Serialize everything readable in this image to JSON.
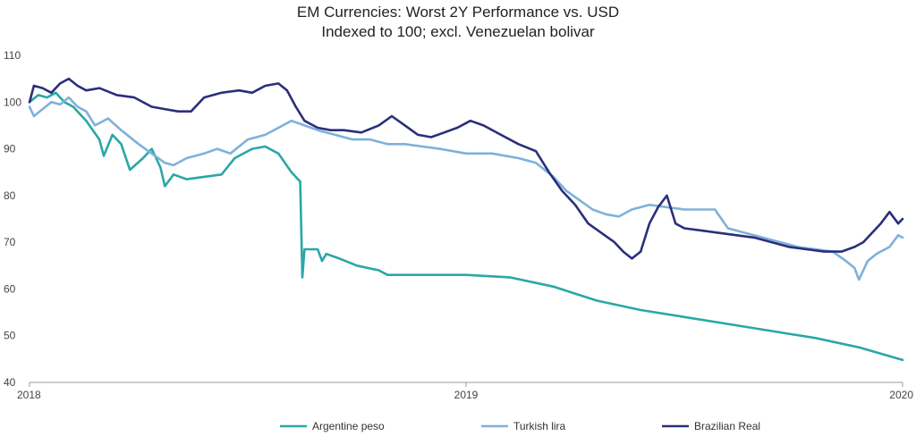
{
  "chart_data": {
    "type": "line",
    "title": "EM Currencies: Worst 2Y Performance vs. USD",
    "subtitle": "Indexed to 100; excl. Venezuelan bolivar",
    "xlabel": "",
    "ylabel": "",
    "x_ticks": [
      "2018",
      "2019",
      "2020"
    ],
    "y_ticks": [
      40,
      50,
      60,
      70,
      80,
      90,
      100,
      110
    ],
    "xlim": [
      2018.0,
      2020.0
    ],
    "ylim": [
      40,
      110
    ],
    "grid": false,
    "legend_position": "bottom",
    "series": [
      {
        "name": "Argentine peso",
        "color": "#2aa7a6",
        "points": [
          [
            2018.0,
            100
          ],
          [
            2018.02,
            101.5
          ],
          [
            2018.04,
            101
          ],
          [
            2018.06,
            102
          ],
          [
            2018.08,
            100
          ],
          [
            2018.1,
            99
          ],
          [
            2018.13,
            96
          ],
          [
            2018.16,
            92
          ],
          [
            2018.17,
            88.5
          ],
          [
            2018.19,
            93
          ],
          [
            2018.21,
            91
          ],
          [
            2018.23,
            85.5
          ],
          [
            2018.26,
            88
          ],
          [
            2018.28,
            90
          ],
          [
            2018.3,
            86
          ],
          [
            2018.31,
            82
          ],
          [
            2018.33,
            84.5
          ],
          [
            2018.36,
            83.5
          ],
          [
            2018.4,
            84
          ],
          [
            2018.44,
            84.5
          ],
          [
            2018.47,
            88
          ],
          [
            2018.51,
            90
          ],
          [
            2018.54,
            90.5
          ],
          [
            2018.57,
            89
          ],
          [
            2018.6,
            85
          ],
          [
            2018.62,
            83
          ],
          [
            2018.625,
            62.5
          ],
          [
            2018.63,
            68.5
          ],
          [
            2018.66,
            68.5
          ],
          [
            2018.67,
            66
          ],
          [
            2018.68,
            67.5
          ],
          [
            2018.71,
            66.5
          ],
          [
            2018.75,
            65
          ],
          [
            2018.8,
            64
          ],
          [
            2018.82,
            63
          ],
          [
            2018.9,
            63
          ],
          [
            2019.0,
            63
          ],
          [
            2019.1,
            62.5
          ],
          [
            2019.2,
            60.5
          ],
          [
            2019.3,
            57.5
          ],
          [
            2019.4,
            55.5
          ],
          [
            2019.5,
            54
          ],
          [
            2019.6,
            52.5
          ],
          [
            2019.7,
            51
          ],
          [
            2019.8,
            49.5
          ],
          [
            2019.9,
            47.5
          ],
          [
            2020.0,
            44.8
          ]
        ]
      },
      {
        "name": "Turkish lira",
        "color": "#7fb1da",
        "points": [
          [
            2018.0,
            99
          ],
          [
            2018.01,
            97
          ],
          [
            2018.03,
            98.5
          ],
          [
            2018.05,
            100
          ],
          [
            2018.07,
            99.5
          ],
          [
            2018.09,
            101
          ],
          [
            2018.11,
            99
          ],
          [
            2018.13,
            98
          ],
          [
            2018.15,
            95
          ],
          [
            2018.18,
            96.5
          ],
          [
            2018.21,
            94
          ],
          [
            2018.25,
            91
          ],
          [
            2018.28,
            89
          ],
          [
            2018.31,
            87
          ],
          [
            2018.33,
            86.5
          ],
          [
            2018.36,
            88
          ],
          [
            2018.4,
            89
          ],
          [
            2018.43,
            90
          ],
          [
            2018.46,
            89
          ],
          [
            2018.5,
            92
          ],
          [
            2018.54,
            93
          ],
          [
            2018.57,
            94.5
          ],
          [
            2018.6,
            96
          ],
          [
            2018.63,
            95
          ],
          [
            2018.66,
            94
          ],
          [
            2018.7,
            93
          ],
          [
            2018.74,
            92
          ],
          [
            2018.78,
            92
          ],
          [
            2018.82,
            91
          ],
          [
            2018.86,
            91
          ],
          [
            2018.9,
            90.5
          ],
          [
            2018.94,
            90
          ],
          [
            2019.0,
            89
          ],
          [
            2019.06,
            89
          ],
          [
            2019.12,
            88
          ],
          [
            2019.16,
            87
          ],
          [
            2019.2,
            84
          ],
          [
            2019.23,
            81
          ],
          [
            2019.26,
            79
          ],
          [
            2019.29,
            77
          ],
          [
            2019.32,
            76
          ],
          [
            2019.35,
            75.5
          ],
          [
            2019.38,
            77
          ],
          [
            2019.42,
            78
          ],
          [
            2019.46,
            77.5
          ],
          [
            2019.5,
            77
          ],
          [
            2019.54,
            77
          ],
          [
            2019.57,
            77
          ],
          [
            2019.6,
            73
          ],
          [
            2019.64,
            72
          ],
          [
            2019.68,
            71
          ],
          [
            2019.72,
            70
          ],
          [
            2019.76,
            69
          ],
          [
            2019.8,
            68.5
          ],
          [
            2019.84,
            68
          ],
          [
            2019.87,
            66
          ],
          [
            2019.89,
            64.5
          ],
          [
            2019.9,
            62
          ],
          [
            2019.92,
            66
          ],
          [
            2019.94,
            67.5
          ],
          [
            2019.97,
            69
          ],
          [
            2019.99,
            71.5
          ],
          [
            2020.0,
            71
          ]
        ]
      },
      {
        "name": "Brazilian Real",
        "color": "#2a2f7a",
        "points": [
          [
            2018.0,
            100
          ],
          [
            2018.01,
            103.5
          ],
          [
            2018.03,
            103
          ],
          [
            2018.05,
            102
          ],
          [
            2018.07,
            104
          ],
          [
            2018.09,
            105
          ],
          [
            2018.11,
            103.5
          ],
          [
            2018.13,
            102.5
          ],
          [
            2018.16,
            103
          ],
          [
            2018.2,
            101.5
          ],
          [
            2018.24,
            101
          ],
          [
            2018.28,
            99
          ],
          [
            2018.31,
            98.5
          ],
          [
            2018.34,
            98
          ],
          [
            2018.37,
            98
          ],
          [
            2018.4,
            101
          ],
          [
            2018.44,
            102
          ],
          [
            2018.48,
            102.5
          ],
          [
            2018.51,
            102
          ],
          [
            2018.54,
            103.5
          ],
          [
            2018.57,
            104
          ],
          [
            2018.59,
            102.5
          ],
          [
            2018.61,
            99
          ],
          [
            2018.63,
            96
          ],
          [
            2018.66,
            94.5
          ],
          [
            2018.69,
            94
          ],
          [
            2018.72,
            94
          ],
          [
            2018.76,
            93.5
          ],
          [
            2018.8,
            95
          ],
          [
            2018.83,
            97
          ],
          [
            2018.86,
            95
          ],
          [
            2018.89,
            93
          ],
          [
            2018.92,
            92.5
          ],
          [
            2018.95,
            93.5
          ],
          [
            2018.98,
            94.5
          ],
          [
            2019.01,
            96
          ],
          [
            2019.04,
            95
          ],
          [
            2019.08,
            93
          ],
          [
            2019.12,
            91
          ],
          [
            2019.16,
            89.5
          ],
          [
            2019.19,
            85
          ],
          [
            2019.22,
            81
          ],
          [
            2019.25,
            78
          ],
          [
            2019.28,
            74
          ],
          [
            2019.31,
            72
          ],
          [
            2019.34,
            70
          ],
          [
            2019.36,
            68
          ],
          [
            2019.38,
            66.5
          ],
          [
            2019.4,
            68
          ],
          [
            2019.42,
            74
          ],
          [
            2019.44,
            77.5
          ],
          [
            2019.46,
            80
          ],
          [
            2019.48,
            74
          ],
          [
            2019.5,
            73
          ],
          [
            2019.54,
            72.5
          ],
          [
            2019.58,
            72
          ],
          [
            2019.62,
            71.5
          ],
          [
            2019.66,
            71
          ],
          [
            2019.7,
            70
          ],
          [
            2019.74,
            69
          ],
          [
            2019.78,
            68.5
          ],
          [
            2019.82,
            68
          ],
          [
            2019.86,
            68
          ],
          [
            2019.89,
            69
          ],
          [
            2019.91,
            70
          ],
          [
            2019.93,
            72
          ],
          [
            2019.95,
            74
          ],
          [
            2019.97,
            76.5
          ],
          [
            2019.99,
            74
          ],
          [
            2020.0,
            75
          ]
        ]
      }
    ]
  }
}
